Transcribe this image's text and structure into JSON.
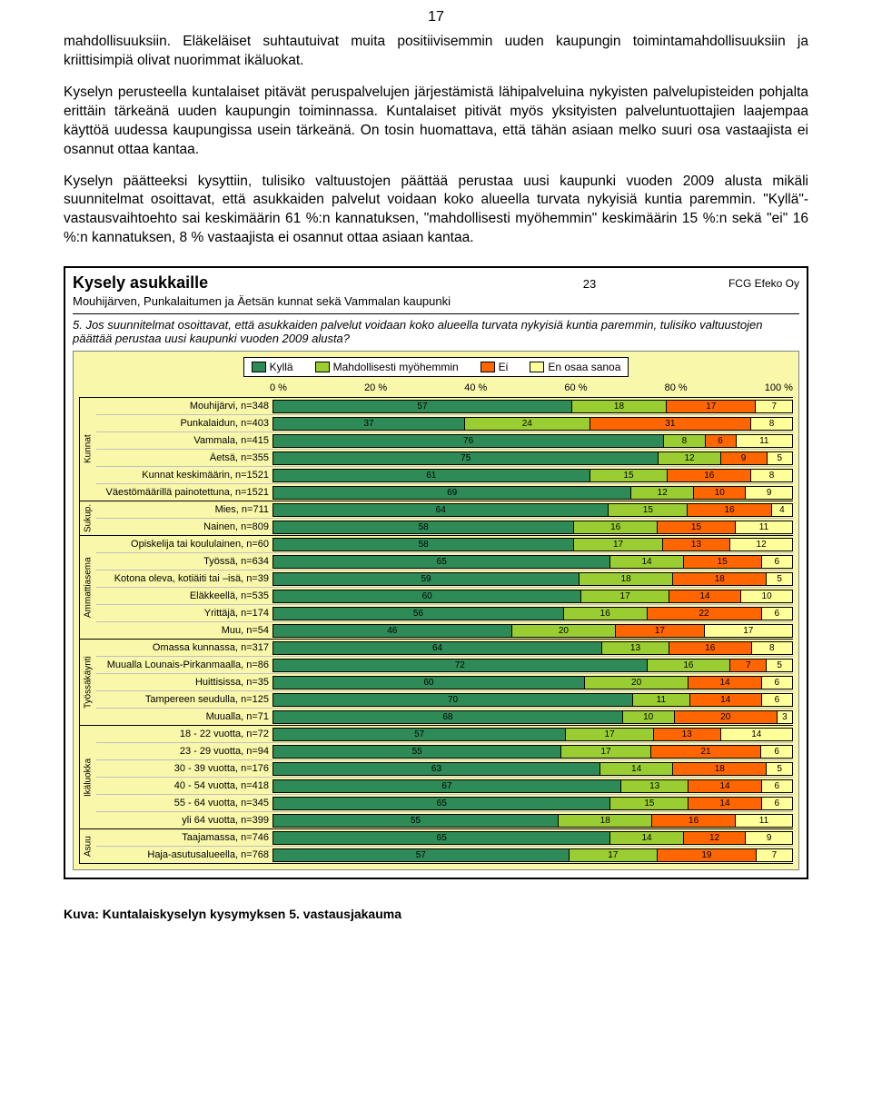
{
  "page_number": "17",
  "paragraphs": [
    "mahdollisuuksiin. Eläkeläiset suhtautuivat muita positiivisemmin uuden kaupungin toimintamahdollisuuksiin ja kriittisimpiä olivat nuorimmat ikäluokat.",
    "Kyselyn perusteella kuntalaiset pitävät peruspalvelujen järjestämistä lähipalveluina nykyisten palvelupisteiden pohjalta erittäin tärkeänä uuden kaupungin toiminnassa. Kuntalaiset pitivät myös yksityisten palveluntuottajien laajempaa käyttöä uudessa kaupungissa usein tärkeänä. On tosin huomattava, että tähän asiaan melko suuri osa vastaajista ei osannut ottaa kantaa.",
    "Kyselyn päätteeksi kysyttiin, tulisiko valtuustojen päättää perustaa uusi kaupunki vuoden 2009 alusta mikäli suunnitelmat osoittavat, että asukkaiden palvelut voidaan koko alueella turvata nykyisiä kuntia paremmin. \"Kyllä\"-vastausvaihtoehto sai keskimäärin 61 %:n kannatuksen, \"mahdollisesti myöhemmin\" keskimäärin 15 %:n sekä \"ei\" 16 %:n kannatuksen, 8 % vastaajista ei osannut ottaa asiaan kantaa."
  ],
  "chart": {
    "title": "Kysely asukkaille",
    "page": "23",
    "company": "FCG Efeko Oy",
    "subtitle": "Mouhijärven, Punkalaitumen ja Äetsän kunnat sekä Vammalan kaupunki",
    "question": "5. Jos suunnitelmat osoittavat, että asukkaiden palvelut voidaan koko alueella turvata nykyisiä kuntia paremmin, tulisiko valtuustojen päättää perustaa uusi kaupunki vuoden 2009 alusta?",
    "legend": [
      {
        "label": "Kyllä",
        "color": "#2e8b57"
      },
      {
        "label": "Mahdollisesti myöhemmin",
        "color": "#9acd32"
      },
      {
        "label": "Ei",
        "color": "#ff6600"
      },
      {
        "label": "En osaa sanoa",
        "color": "#ffff99"
      }
    ],
    "axis": [
      "0 %",
      "20 %",
      "40 %",
      "60 %",
      "80 %",
      "100 %"
    ],
    "groups": [
      {
        "name": "Kunnat",
        "rows": [
          {
            "label": "Mouhijärvi, n=348",
            "v": [
              57,
              18,
              17,
              7
            ]
          },
          {
            "label": "Punkalaidun, n=403",
            "v": [
              37,
              24,
              31,
              8
            ]
          },
          {
            "label": "Vammala, n=415",
            "v": [
              76,
              8,
              6,
              11
            ]
          },
          {
            "label": "Äetsä, n=355",
            "v": [
              75,
              12,
              9,
              5
            ]
          },
          {
            "label": "Kunnat keskimäärin, n=1521",
            "v": [
              61,
              15,
              16,
              8
            ]
          },
          {
            "label": "Väestömäärillä painotettuna, n=1521",
            "v": [
              69,
              12,
              10,
              9
            ]
          }
        ]
      },
      {
        "name": "Sukup.",
        "rows": [
          {
            "label": "Mies, n=711",
            "v": [
              64,
              15,
              16,
              4
            ]
          },
          {
            "label": "Nainen, n=809",
            "v": [
              58,
              16,
              15,
              11
            ]
          }
        ]
      },
      {
        "name": "Ammattiasema",
        "rows": [
          {
            "label": "Opiskelija tai koululainen, n=60",
            "v": [
              58,
              17,
              13,
              12
            ]
          },
          {
            "label": "Työssä, n=634",
            "v": [
              65,
              14,
              15,
              6
            ]
          },
          {
            "label": "Kotona oleva, kotiäiti tai –isä, n=39",
            "v": [
              59,
              18,
              18,
              5
            ]
          },
          {
            "label": "Eläkkeellä, n=535",
            "v": [
              60,
              17,
              14,
              10
            ]
          },
          {
            "label": "Yrittäjä, n=174",
            "v": [
              56,
              16,
              22,
              6
            ]
          },
          {
            "label": "Muu, n=54",
            "v": [
              46,
              20,
              17,
              17
            ]
          }
        ]
      },
      {
        "name": "Työssäkäynti",
        "rows": [
          {
            "label": "Omassa kunnassa, n=317",
            "v": [
              64,
              13,
              16,
              8
            ]
          },
          {
            "label": "Muualla Lounais-Pirkanmaalla, n=86",
            "v": [
              72,
              16,
              7,
              5
            ]
          },
          {
            "label": "Huittisissa, n=35",
            "v": [
              60,
              20,
              14,
              6
            ]
          },
          {
            "label": "Tampereen seudulla, n=125",
            "v": [
              70,
              11,
              14,
              6
            ]
          },
          {
            "label": "Muualla, n=71",
            "v": [
              68,
              10,
              20,
              3
            ]
          }
        ]
      },
      {
        "name": "Ikäluokka",
        "rows": [
          {
            "label": "18 - 22 vuotta, n=72",
            "v": [
              57,
              17,
              13,
              14
            ]
          },
          {
            "label": "23 - 29 vuotta, n=94",
            "v": [
              55,
              17,
              21,
              6
            ]
          },
          {
            "label": "30 - 39 vuotta, n=176",
            "v": [
              63,
              14,
              18,
              5
            ]
          },
          {
            "label": "40 - 54 vuotta, n=418",
            "v": [
              67,
              13,
              14,
              6
            ]
          },
          {
            "label": "55 - 64 vuotta, n=345",
            "v": [
              65,
              15,
              14,
              6
            ]
          },
          {
            "label": "yli 64 vuotta, n=399",
            "v": [
              55,
              18,
              16,
              11
            ]
          }
        ]
      },
      {
        "name": "Asuu",
        "rows": [
          {
            "label": "Taajamassa, n=746",
            "v": [
              65,
              14,
              12,
              9
            ]
          },
          {
            "label": "Haja-asutusalueella, n=768",
            "v": [
              57,
              17,
              19,
              7
            ]
          }
        ]
      }
    ]
  },
  "caption": "Kuva: Kuntalaiskyselyn kysymyksen 5. vastausjakauma"
}
